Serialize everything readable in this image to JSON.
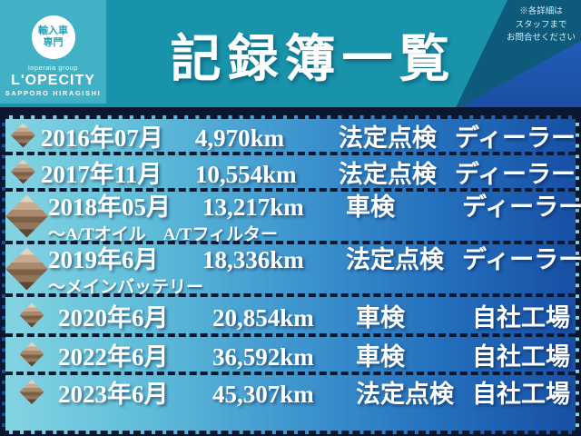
{
  "header": {
    "logo": {
      "badge_line1": "輸入車",
      "badge_line2": "専門",
      "group": "loperaia group",
      "brand": "L'OPECITY",
      "location": "SAPPORO HIRAGISHI"
    },
    "title": "記録簿一覧",
    "notice": {
      "line1": "※各詳細は",
      "line2": "スタッフまで",
      "line3": "お問合せください"
    }
  },
  "colors": {
    "header_teal": "#1893aa",
    "logo_panel_teal": "#41b2c6",
    "dark_wedge": "#0d5a7a",
    "blue_wedge": "#1e56b4",
    "frame_navy": "#0a1733",
    "row_gradient_left": "#84d4e3",
    "row_gradient_right": "#174fa5",
    "diamond_tan": "#c6ab90",
    "text_white": "#ffffff"
  },
  "records": [
    {
      "date": "2016年07月",
      "km": "4,970km",
      "type": "法定点検",
      "shop": "ディーラー"
    },
    {
      "date": "2017年11月",
      "km": "10,554km",
      "type": "法定点検",
      "shop": "ディーラー"
    },
    {
      "date": "2018年05月",
      "km": "13,217km",
      "type": "車検",
      "shop": "ディーラー",
      "note": "～A/Tオイル　A/Tフィルター"
    },
    {
      "date": "2019年6月",
      "km": "18,336km",
      "type": "法定点検",
      "shop": "ディーラー",
      "note": "～メインバッテリー"
    },
    {
      "date": "2020年6月",
      "km": "20,854km",
      "type": "車検",
      "shop": "自社工場"
    },
    {
      "date": "2022年6月",
      "km": "36,592km",
      "type": "車検",
      "shop": "自社工場"
    },
    {
      "date": "2023年6月",
      "km": "45,307km",
      "type": "法定点検",
      "shop": "自社工場"
    }
  ]
}
